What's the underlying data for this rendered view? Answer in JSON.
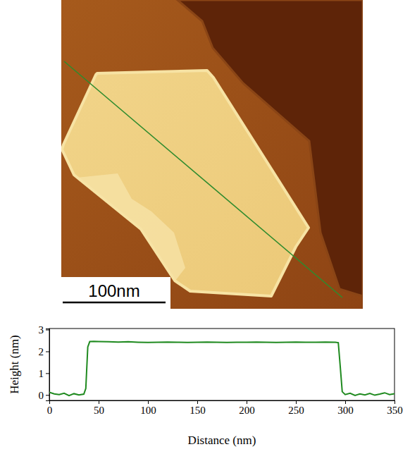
{
  "chart_data": [
    {
      "type": "image",
      "annotations": [
        "100nm"
      ],
      "color": "#2e8b2e"
    },
    {
      "type": "line",
      "xlabel": "Distance (nm)",
      "ylabel": "Height (nm)",
      "color": "#1f8a1f",
      "grid": false,
      "xlim": [
        0,
        350
      ],
      "ylim": [
        -0.25,
        3.05
      ],
      "xticks": [
        0,
        50,
        100,
        150,
        200,
        250,
        300,
        350
      ],
      "yticks": [
        0,
        1,
        2,
        3
      ],
      "x": [
        0,
        5,
        10,
        15,
        20,
        25,
        30,
        35,
        37,
        39,
        41,
        45,
        50,
        60,
        70,
        80,
        90,
        100,
        110,
        120,
        130,
        140,
        150,
        160,
        170,
        180,
        190,
        200,
        210,
        220,
        230,
        240,
        250,
        260,
        270,
        280,
        290,
        293,
        295,
        297,
        300,
        305,
        310,
        315,
        320,
        325,
        330,
        335,
        340,
        345,
        350
      ],
      "values": [
        0.12,
        0.05,
        0.02,
        0.08,
        -0.03,
        0.06,
        0.0,
        0.04,
        0.3,
        2.2,
        2.45,
        2.46,
        2.45,
        2.44,
        2.43,
        2.44,
        2.42,
        2.41,
        2.42,
        2.43,
        2.42,
        2.41,
        2.42,
        2.43,
        2.42,
        2.41,
        2.42,
        2.42,
        2.43,
        2.42,
        2.41,
        2.42,
        2.43,
        2.42,
        2.42,
        2.43,
        2.42,
        2.4,
        1.3,
        0.15,
        0.02,
        0.08,
        -0.02,
        0.05,
        0.0,
        0.07,
        -0.01,
        0.04,
        0.1,
        0.02,
        0.06
      ]
    }
  ]
}
